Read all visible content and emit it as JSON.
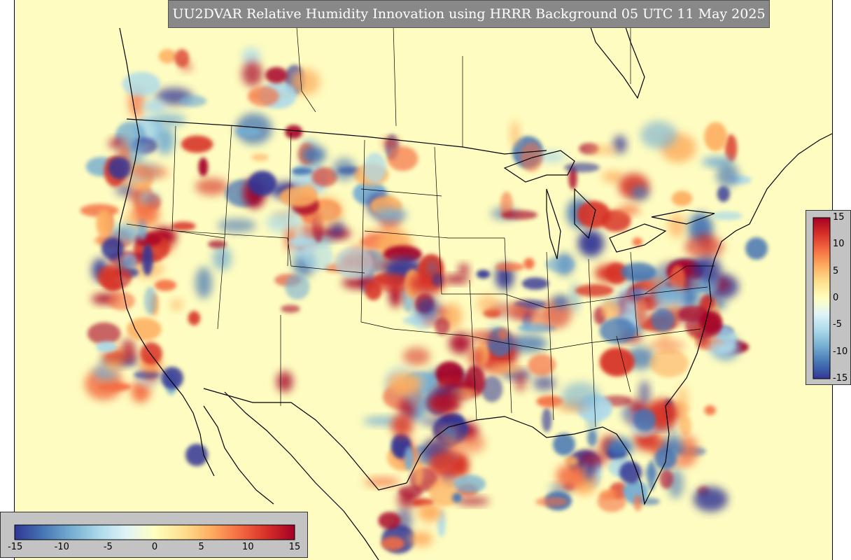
{
  "title": "UU2DVAR Relative Humidity Innovation using HRRR Background 05 UTC 11 May 2025",
  "colorbar": {
    "min": -15,
    "max": 15,
    "ticks_horizontal": [
      "-15",
      "-10",
      "-5",
      "0",
      "5",
      "10",
      "15"
    ],
    "ticks_vertical": [
      "15",
      "10",
      "5",
      "0",
      "-5",
      "-10",
      "-15"
    ],
    "stops": [
      "#313695",
      "#4575b4",
      "#74add1",
      "#abd9e9",
      "#e0f3f8",
      "#ffffbf",
      "#fee090",
      "#fdae61",
      "#f46d43",
      "#d73027",
      "#a50026"
    ]
  },
  "colors": {
    "background_field": "#fefcc0",
    "title_box": "#888888",
    "colorbar_panel": "#c3c3c3"
  }
}
